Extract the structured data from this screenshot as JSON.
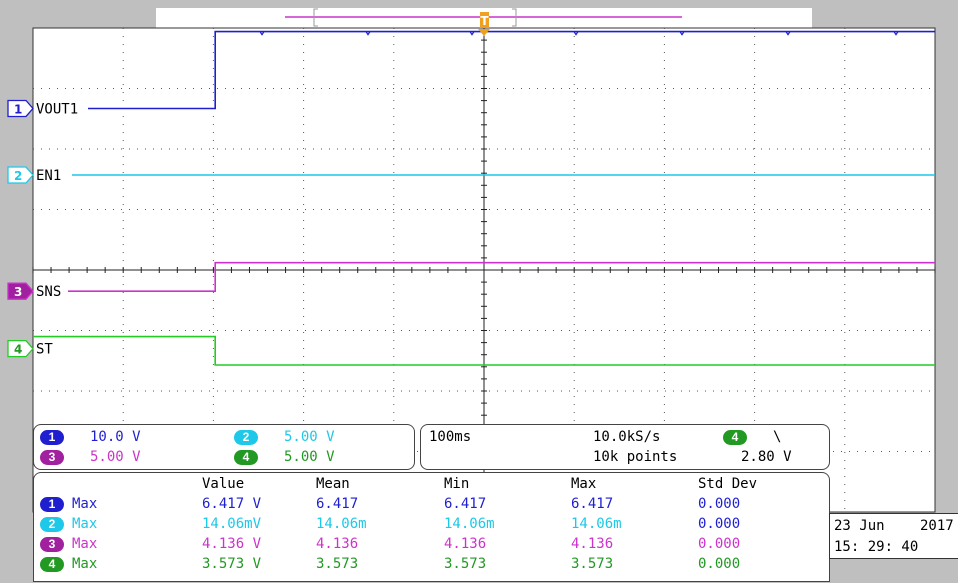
{
  "colors": {
    "ch1": "#1f1fd0",
    "ch2": "#1ec8e8",
    "ch3": "#cc33cc",
    "ch4": "#22cc22",
    "grid": "#000000",
    "background": "#ffffff"
  },
  "channels": [
    {
      "num": "1",
      "label": "VOUT1",
      "color": "#1f1fd0"
    },
    {
      "num": "2",
      "label": "EN1",
      "color": "#1ec8e8"
    },
    {
      "num": "3",
      "label": "SNS",
      "color": "#cc33cc"
    },
    {
      "num": "4",
      "label": "ST",
      "color": "#22cc22"
    }
  ],
  "vertical_settings": [
    {
      "num": "1",
      "value": "10.0 V"
    },
    {
      "num": "2",
      "value": "5.00 V"
    },
    {
      "num": "3",
      "value": "5.00 V"
    },
    {
      "num": "4",
      "value": "5.00 V"
    }
  ],
  "timebase": {
    "time_div": "100ms",
    "sample_rate": "10.0kS/s",
    "record_length": "10k points",
    "trigger_channel": "4",
    "trigger_slope": "\\",
    "trigger_level": "2.80 V"
  },
  "measurements": {
    "headers": [
      "Value",
      "Mean",
      "Min",
      "Max",
      "Std Dev"
    ],
    "rows": [
      {
        "num": "1",
        "type": "Max",
        "value": "6.417 V",
        "mean": "6.417",
        "min": "6.417",
        "max": "6.417",
        "std": "0.000"
      },
      {
        "num": "2",
        "type": "Max",
        "value": "14.06mV",
        "mean": "14.06m",
        "min": "14.06m",
        "max": "14.06m",
        "std": "0.000"
      },
      {
        "num": "3",
        "type": "Max",
        "value": "4.136 V",
        "mean": "4.136",
        "min": "4.136",
        "max": "4.136",
        "std": "0.000"
      },
      {
        "num": "4",
        "type": "Max",
        "value": "3.573 V",
        "mean": "3.573",
        "min": "3.573",
        "max": "3.573",
        "std": "0.000"
      }
    ]
  },
  "datetime": {
    "date": "23 Jun",
    "year": "2017",
    "time": "15: 29: 40"
  },
  "trigger_marker": "T",
  "chart_data": {
    "type": "line",
    "x_divisions": 10,
    "y_divisions": 8,
    "grid": true,
    "series": [
      {
        "name": "VOUT1",
        "x": [
          0,
          2.02,
          2.02,
          10
        ],
        "y": [
          2.67,
          2.67,
          3.94,
          3.94
        ]
      },
      {
        "name": "EN1",
        "x": [
          0,
          10
        ],
        "y": [
          1.57,
          1.57
        ]
      },
      {
        "name": "SNS",
        "x": [
          0,
          2.02,
          2.02,
          10
        ],
        "y": [
          -0.35,
          -0.35,
          0.12,
          0.12
        ]
      },
      {
        "name": "ST",
        "x": [
          0,
          2.02,
          2.02,
          10
        ],
        "y": [
          -1.1,
          -1.1,
          -1.57,
          -1.57
        ]
      }
    ]
  }
}
